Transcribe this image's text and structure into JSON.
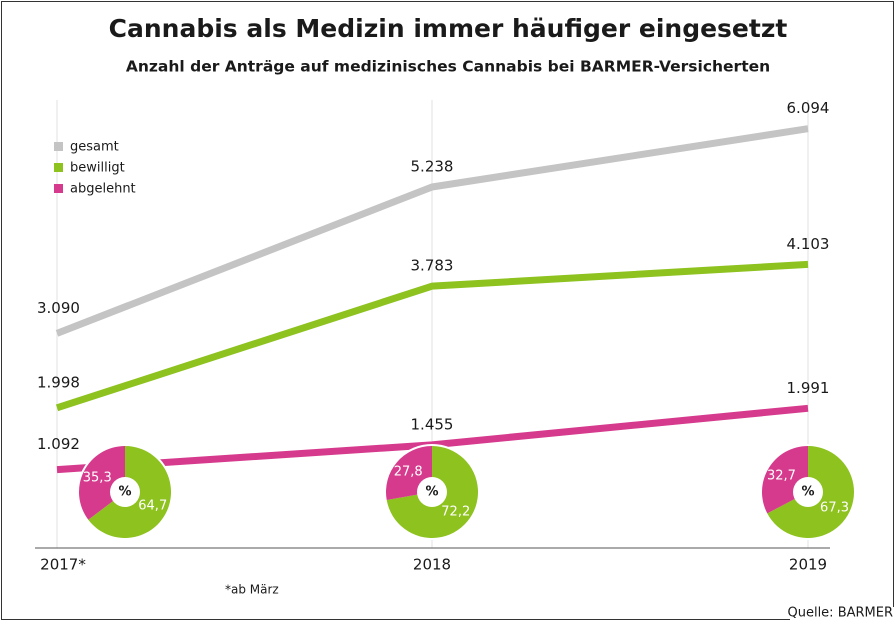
{
  "chart_data": [
    {
      "type": "line",
      "title": "Cannabis als Medizin immer häufiger eingesetzt",
      "subtitle": "Anzahl der Anträge auf medizinisches Cannabis bei BARMER-Versicherten",
      "categories": [
        "2017*",
        "2018",
        "2019"
      ],
      "series": [
        {
          "name": "gesamt",
          "color": "#c4c4c4",
          "values": [
            3090,
            5238,
            6094
          ],
          "value_labels": [
            "3.090",
            "5.238",
            "6.094"
          ]
        },
        {
          "name": "bewilligt",
          "color": "#8dc21f",
          "values": [
            1998,
            3783,
            4103
          ],
          "value_labels": [
            "1.998",
            "3.783",
            "4.103"
          ]
        },
        {
          "name": "abgelehnt",
          "color": "#d63a8c",
          "values": [
            1092,
            1455,
            1991
          ],
          "value_labels": [
            "1.092",
            "1.455",
            "1.991"
          ]
        }
      ],
      "ylim": [
        0,
        6500
      ],
      "legend": "top-left",
      "footnote": "*ab März",
      "source": "Quelle: BARMER"
    },
    {
      "type": "donut",
      "center_label": "%",
      "series": [
        {
          "color": "#8dc21f",
          "values": [
            64.7,
            72.2,
            67.3
          ],
          "value_labels": [
            "64,7",
            "72,2",
            "67,3"
          ]
        },
        {
          "color": "#d63a8c",
          "values": [
            35.3,
            27.8,
            32.7
          ],
          "value_labels": [
            "35,3",
            "27,8",
            "32,7"
          ]
        }
      ]
    }
  ]
}
